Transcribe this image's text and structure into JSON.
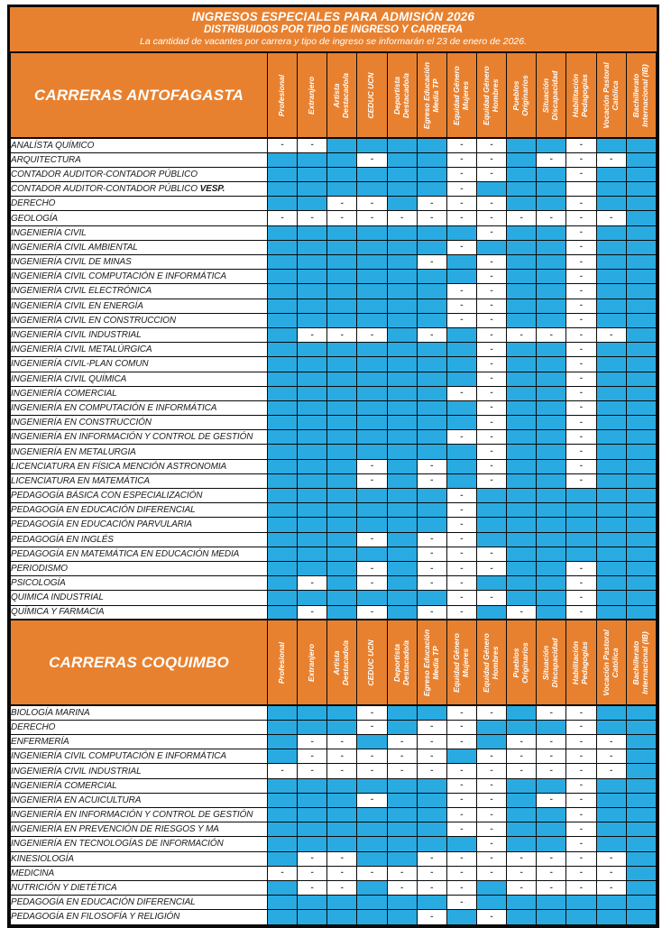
{
  "title": {
    "line1": "INGRESOS ESPECIALES PARA ADMISIÓN 2026",
    "line2": "DISTRIBUIDOS POR TIPO DE INGRESO Y CARRERA",
    "line3": "La cantidad de vacantes por carrera y tipo de ingreso se informarán el 23 de enero de 2026."
  },
  "colors": {
    "orange": "#E8812F",
    "blue": "#29ABE2",
    "border": "#0A0A0A",
    "dash": "#55565A"
  },
  "cell_marks": {
    "dash": "-"
  },
  "columns": [
    {
      "id": "profesional",
      "lines": [
        "Profesional"
      ]
    },
    {
      "id": "extranjero",
      "lines": [
        "Extranjero"
      ]
    },
    {
      "id": "artista-destacado",
      "lines": [
        "Artista",
        "Destacado/a"
      ]
    },
    {
      "id": "ceduc-ucn",
      "lines": [
        "CEDUC UCN"
      ]
    },
    {
      "id": "deportista-destacado",
      "lines": [
        "Deportista",
        "Destacado/a"
      ]
    },
    {
      "id": "egreso-educacion-media-tp",
      "lines": [
        "Egreso Educación",
        "Media TP"
      ]
    },
    {
      "id": "equidad-genero-mujeres",
      "lines": [
        "Equidad Género",
        "Mujeres"
      ]
    },
    {
      "id": "equidad-genero-hombres",
      "lines": [
        "Equidad Género",
        "Hombres"
      ]
    },
    {
      "id": "pueblos-originarios",
      "lines": [
        "Pueblos",
        "Originarios"
      ]
    },
    {
      "id": "situacion-discapacidad",
      "lines": [
        "Situación",
        "Discapacidad"
      ]
    },
    {
      "id": "habilitacion-pedagogias",
      "lines": [
        "Habilitación",
        "Pedagogías"
      ]
    },
    {
      "id": "vocacion-pastoral-catolica",
      "lines": [
        "Vocación Pastoral",
        "Católica"
      ]
    },
    {
      "id": "bachillerato-internacional-ib",
      "lines": [
        "Bachillerato",
        "Internacional (IB)"
      ]
    }
  ],
  "sections": [
    {
      "title": "CARRERAS ANTOFAGASTA",
      "rows": [
        {
          "name": "ANALÍSTA QUÍMICO",
          "cells": "--BBBB--BB-BB"
        },
        {
          "name": "ARQUITECTURA",
          "cells": "BBB-BB--B---B"
        },
        {
          "name": "CONTADOR AUDITOR-CONTADOR PÚBLICO",
          "cells": "BBBBBB--BB-BB"
        },
        {
          "name": "CONTADOR AUDITOR-CONTADOR PÚBLICO",
          "suffix": "VESP.",
          "cells": "BBBBBB-BBBEBB"
        },
        {
          "name": "DERECHO",
          "cells": "BB--B---BB-BB"
        },
        {
          "name": "GEOLOGÍA",
          "cells": "------------B"
        },
        {
          "name": "INGENIERÍA CIVIL",
          "cells": "BBBBBBB-BB-BB"
        },
        {
          "name": "INGENIERÍA CIVIL AMBIENTAL",
          "cells": "BBBBBB-BBB-BB"
        },
        {
          "name": "INGENIERÍA CIVIL DE MINAS",
          "cells": "BBBBB-B-BB-BB"
        },
        {
          "name": "INGENIERÍA CIVIL COMPUTACIÓN E INFORMÁTICA",
          "cells": "BBBBBBB-BB-BB"
        },
        {
          "name": "INGENIERÍA CIVIL ELECTRÓNICA",
          "cells": "BBBBBB--BB-BB"
        },
        {
          "name": "INGENIERÍA CIVIL EN ENERGÍA",
          "cells": "BBBBBB--BB-BB"
        },
        {
          "name": "INGENIERÍA CIVIL EN  CONSTRUCCION",
          "cells": "BBBBBB--BB-BB"
        },
        {
          "name": "INGENIERÍA CIVIL INDUSTRIAL",
          "cells": "B---B-B-----B"
        },
        {
          "name": "INGENIERÍA CIVIL METALÚRGICA",
          "cells": "BBBBBBB-BB-BB"
        },
        {
          "name": "INGENIERÍA CIVIL-PLAN COMUN",
          "cells": "BBBBBBB-BB-BB"
        },
        {
          "name": "INGENIERÍA CIVIL QUÍMICA",
          "cells": "BBBBBBB-BB-BB"
        },
        {
          "name": "INGENIERÍA COMERCIAL",
          "cells": "BBBBBB--BB-BB"
        },
        {
          "name": "INGENIERÍA EN COMPUTACIÓN E INFORMÁTICA",
          "cells": "BBBBBBB-BB-BB"
        },
        {
          "name": "INGENIERÍA EN CONSTRUCCIÓN",
          "cells": "BBBBBBB-BB-BB"
        },
        {
          "name": "INGENIERÍA EN INFORMACIÓN Y CONTROL DE GESTIÓN",
          "cells": "BBBBBB--BB-BB"
        },
        {
          "name": "INGENIERÍA EN METALURGIA",
          "cells": "BBBBBBB-BB-BB"
        },
        {
          "name": "LICENCIATURA EN FÍSICA MENCIÓN ASTRONOMIA",
          "cells": "BBB-B-B-BB-BB"
        },
        {
          "name": "LICENCIATURA EN MATEMÁTICA",
          "cells": "BBB-B-B-BB-BB"
        },
        {
          "name": "PEDAGOGÍA BÁSICA CON ESPECIALIZACIÓN",
          "cells": "BBBBBB-BBBBBB"
        },
        {
          "name": "PEDAGOGÍA EN EDUCACIÓN DIFERENCIAL",
          "cells": "BBBBBB-BBBBBB"
        },
        {
          "name": "PEDAGOGÍA EN EDUCACIÓN PARVULARIA",
          "cells": "BBBBBB-BBBBBB"
        },
        {
          "name": "PEDAGOGÍA EN INGLÉS",
          "cells": "BBB-B--BBBBBB"
        },
        {
          "name": "PEDAGOGÍA EN MATEMÁTICA EN EDUCACIÓN MEDIA",
          "cells": "BBBBB---BBBBB"
        },
        {
          "name": "PERIODISMO",
          "cells": "BBB-B---BB-BB"
        },
        {
          "name": "PSICOLOGÍA",
          "cells": "B-B-B--BBB-BB"
        },
        {
          "name": "QUIMICA INDUSTRIAL",
          "cells": "BBBBBB--BB-BB"
        },
        {
          "name": "QUÍMICA Y FARMACIA",
          "cells": "B-B-B--B-B-BB"
        }
      ]
    },
    {
      "title": "CARRERAS COQUIMBO",
      "rows": [
        {
          "name": "BIOLOGÍA MARINA",
          "cells": "BBB-BB--B--BB"
        },
        {
          "name": "DERECHO",
          "cells": "BBB-B--BBB-BB"
        },
        {
          "name": "ENFERMERÍA",
          "cells": "B--B---B----B"
        },
        {
          "name": "INGENIERÍA CIVIL COMPUTACIÓN E INFORMÁTICA",
          "cells": "B-----B-----B"
        },
        {
          "name": "INGENIERÍA CIVIL INDUSTRIAL",
          "cells": "------------B"
        },
        {
          "name": "INGENIERÍA COMERCIAL",
          "cells": "BBBBBB--BB-BB"
        },
        {
          "name": "INGENIERÍA EN ACUICULTURA",
          "cells": "BBB-BB--B--BB"
        },
        {
          "name": "INGENIERÍA EN INFORMACIÓN Y CONTROL DE GESTIÓN",
          "cells": "BBBBBB--BB-BB"
        },
        {
          "name": "INGENIERÍA EN PREVENCIÓN DE RIESGOS Y MA",
          "cells": "BBBBBB--BB-BB"
        },
        {
          "name": "INGENIERÍA EN TECNOLOGÍAS DE INFORMACIÓN",
          "cells": "BBBBBBB-BB-BB"
        },
        {
          "name": "KINESIOLOGÍA",
          "cells": "B--BB-------B"
        },
        {
          "name": "MEDICINA",
          "cells": "------------B"
        },
        {
          "name": "NUTRICIÓN Y DIETÉTICA",
          "cells": "B--B---B----B"
        },
        {
          "name": "PEDAGOGÍA EN EDUCACIÓN DIFERENCIAL",
          "cells": "BBBBBB-BBBBBB"
        },
        {
          "name": "PEDAGOGÍA EN FILOSOFÍA Y RELIGIÓN",
          "cells": "BBBBB-B-BBBBB"
        }
      ]
    }
  ]
}
